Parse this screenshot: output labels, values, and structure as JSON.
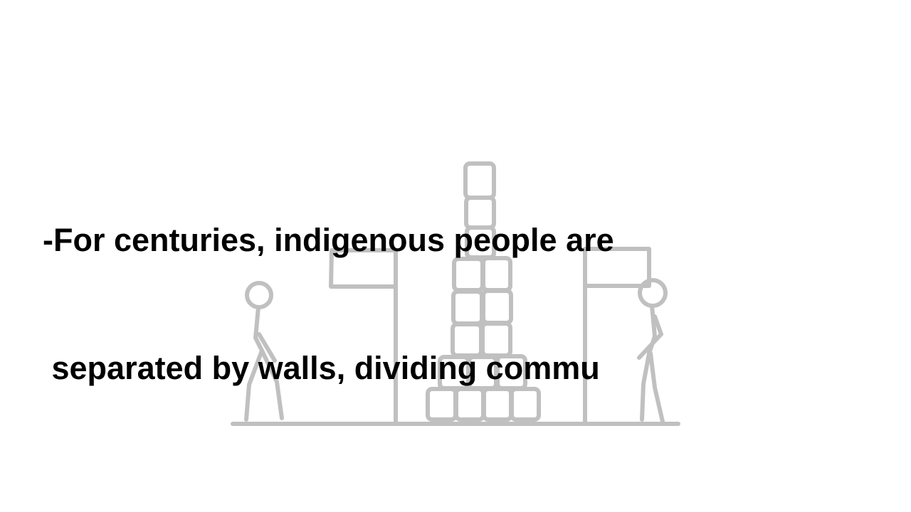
{
  "caption": {
    "line1": "-For centuries, indigenous people are",
    "line2": " separated by walls, dividing commu"
  },
  "colors": {
    "background": "#ffffff",
    "drawing": "#c0c0c0",
    "text": "#000000"
  },
  "illustration": {
    "elements": [
      "stick-figure-left",
      "flag-left",
      "stone-wall",
      "flag-right",
      "stick-figure-right",
      "ground-line"
    ]
  }
}
